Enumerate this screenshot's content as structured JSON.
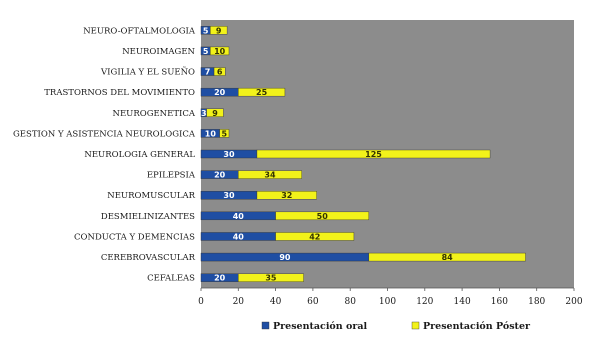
{
  "chart_data": {
    "type": "bar",
    "orientation": "horizontal",
    "stacked": true,
    "categories": [
      "NEURO-OFTALMOLOGIA",
      "NEUROIMAGEN",
      "VIGILIA Y EL SUEÑO",
      "TRASTORNOS DEL MOVIMIENTO",
      "NEUROGENETICA",
      "GESTION Y ASISTENCIA NEUROLOGICA",
      "NEUROLOGIA GENERAL",
      "EPILEPSIA",
      "NEUROMUSCULAR",
      "DESMIELINIZANTES",
      "CONDUCTA Y DEMENCIAS",
      "CEREBROVASCULAR",
      "CEFALEAS"
    ],
    "series": [
      {
        "name": "Presentación oral",
        "color": "#1f4ea3",
        "label_color": "#ffffff",
        "values": [
          5,
          5,
          7,
          20,
          3,
          10,
          30,
          20,
          30,
          40,
          40,
          90,
          20
        ]
      },
      {
        "name": "Presentación Póster",
        "color": "#f2f21a",
        "label_color": "#333300",
        "values": [
          9,
          10,
          6,
          25,
          9,
          5,
          125,
          34,
          32,
          50,
          42,
          84,
          35
        ]
      }
    ],
    "xlim": [
      0,
      200
    ],
    "xticks": [
      "0",
      "20",
      "40",
      "60",
      "80",
      "100",
      "120",
      "140",
      "160",
      "180",
      "200"
    ],
    "plot_background": "#8c8c8c",
    "legend_position": "bottom",
    "grid": false
  }
}
